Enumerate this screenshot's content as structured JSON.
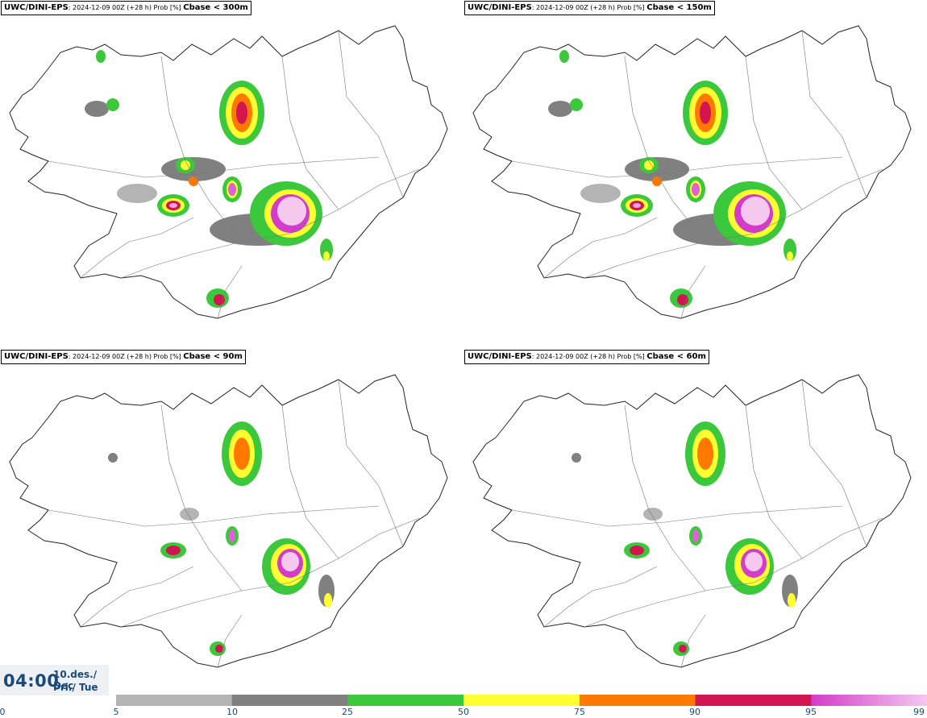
{
  "panels": [
    {
      "model": "UWC/DINI-EPS",
      "meta": ": 2024-12-09 00Z (+28 h) Prob [%] ",
      "variable": "Cbase < 300m"
    },
    {
      "model": "UWC/DINI-EPS",
      "meta": ": 2024-12-09 00Z (+28 h) Prob [%] ",
      "variable": "Cbase < 150m"
    },
    {
      "model": "UWC/DINI-EPS",
      "meta": ": 2024-12-09 00Z (+28 h) Prob [%] ",
      "variable": "Cbase < 90m"
    },
    {
      "model": "UWC/DINI-EPS",
      "meta": ": 2024-12-09 00Z (+28 h) Prob [%] ",
      "variable": "Cbase < 60m"
    }
  ],
  "valid_time": {
    "time": "04:00",
    "date": "10.des./ Dec",
    "weekday": "Þri./ Tue"
  },
  "colorbar": {
    "ticks": [
      "0",
      "5",
      "10",
      "25",
      "50",
      "75",
      "90",
      "95",
      "99"
    ],
    "bins": [
      {
        "from": 5,
        "to": 10,
        "color": "#b4b4b4"
      },
      {
        "from": 10,
        "to": 25,
        "color": "#808080"
      },
      {
        "from": 25,
        "to": 50,
        "color": "#3cc83c"
      },
      {
        "from": 50,
        "to": 75,
        "color": "#ffff32"
      },
      {
        "from": 75,
        "to": 90,
        "color": "#ff7800"
      },
      {
        "from": 90,
        "to": 95,
        "color": "#d21450"
      },
      {
        "from": 95,
        "to": 99,
        "color": "#d23cc8",
        "to_color": "#f5c8f0"
      }
    ]
  }
}
